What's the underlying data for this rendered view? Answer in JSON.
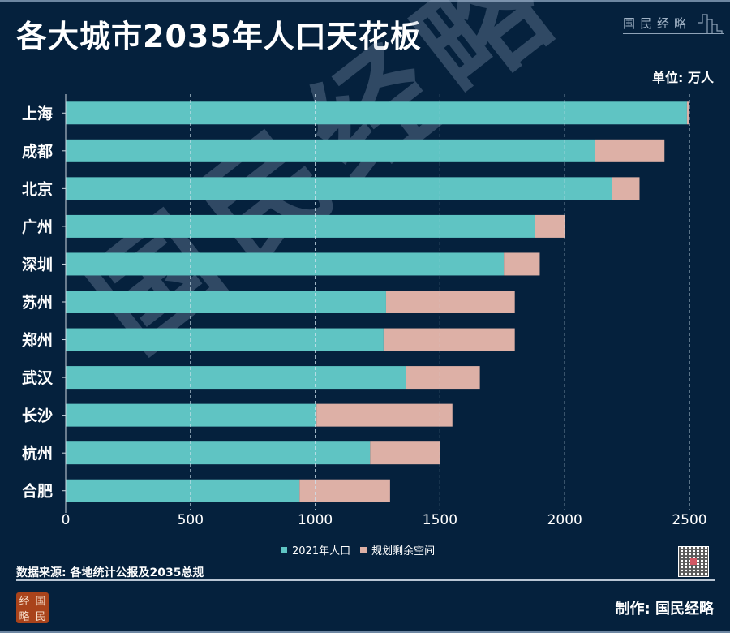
{
  "header": {
    "title": "各大城市2035年人口天花板",
    "brand": "国民经略",
    "unit": "单位: 万人"
  },
  "legend": {
    "items": [
      {
        "label": "2021年人口",
        "color": "#5fc4c3"
      },
      {
        "label": "规划剩余空间",
        "color": "#ddb0a6"
      }
    ]
  },
  "footer": {
    "source": "数据来源: 各地统计公报及2035总规",
    "credit": "制作: 国民经略",
    "logo_chars": [
      "经",
      "国",
      "略",
      "民"
    ],
    "watermark": "国民经略"
  },
  "colors": {
    "background": "#05213d",
    "population": "#5fc4c3",
    "remaining": "#ddb0a6",
    "grid": "#cfe3ee"
  },
  "chart_data": {
    "type": "bar",
    "orientation": "horizontal",
    "stacked": true,
    "title": "各大城市2035年人口天花板",
    "xlabel": "",
    "ylabel": "",
    "unit": "万人",
    "xlim": [
      0,
      2500
    ],
    "xticks": [
      0,
      500,
      1000,
      1500,
      2000,
      2500
    ],
    "grid": "vertical-dashed",
    "legend_position": "bottom-center",
    "categories": [
      "上海",
      "成都",
      "北京",
      "广州",
      "深圳",
      "苏州",
      "郑州",
      "武汉",
      "长沙",
      "杭州",
      "合肥"
    ],
    "series": [
      {
        "name": "2021年人口",
        "values": [
          2490,
          2120,
          2189,
          1881,
          1756,
          1284,
          1274,
          1365,
          1005,
          1220,
          937
        ]
      },
      {
        "name": "规划剩余空间",
        "values": [
          10,
          280,
          111,
          119,
          144,
          516,
          526,
          295,
          545,
          280,
          363
        ]
      }
    ],
    "totals": [
      2500,
      2400,
      2300,
      2000,
      1900,
      1800,
      1800,
      1660,
      1550,
      1500,
      1300
    ]
  }
}
